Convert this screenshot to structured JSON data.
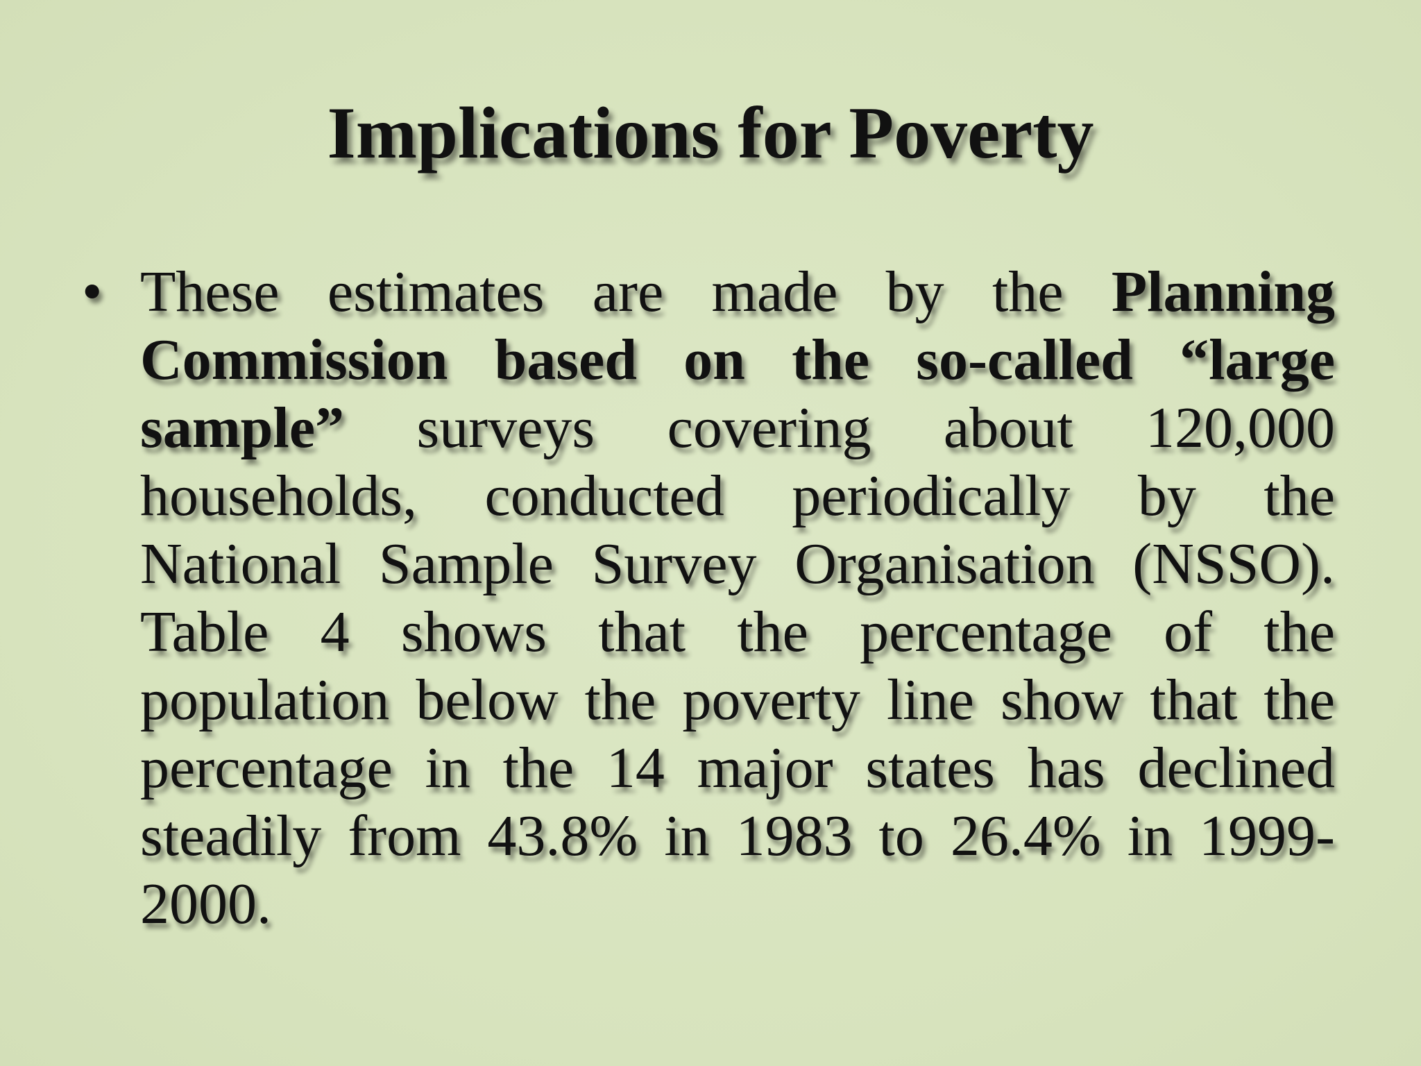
{
  "slide": {
    "title": "Implications for Poverty",
    "bullets": [
      {
        "marker": "•",
        "segments": [
          {
            "text": "These estimates are made by the ",
            "bold": false
          },
          {
            "text": "Planning Commission based on the so-called “large sample”",
            "bold": true
          },
          {
            "text": " surveys covering about 120,000 households, conducted periodically by the National Sample Survey Organisation (NSSO). Table 4 shows that the percentage of the population below the poverty line show that the percentage in the 14 major states has declined steadily from 43.8% in 1983 to 26.4% in 1999-2000.",
            "bold": false
          }
        ]
      }
    ]
  }
}
